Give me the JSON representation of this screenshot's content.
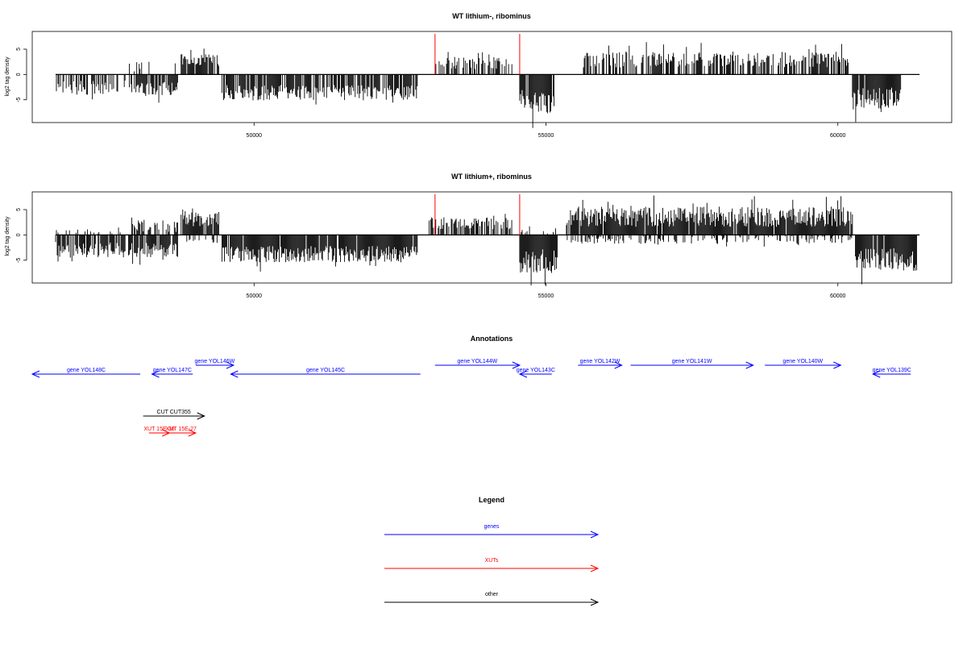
{
  "colors": {
    "genes": "#0000ff",
    "xuts": "#ff0000",
    "other": "#000000",
    "marker": "#ff0000"
  },
  "chart_data": [
    {
      "type": "bar",
      "title": "WT lithium-, ribominus",
      "ylabel": "log2 tag density",
      "xlim": [
        46200,
        61950
      ],
      "ylim": [
        -9.5,
        8.5
      ],
      "yticks": [
        -5,
        0,
        5
      ],
      "xticks": [
        50000,
        55000,
        60000
      ],
      "grid": false,
      "markers": [
        53100,
        54550
      ],
      "series": [
        {
          "xrange": [
            46600,
            47800
          ],
          "sign": -1,
          "mean": 2.6,
          "amp": 1.4,
          "density": 0.6
        },
        {
          "xrange": [
            47850,
            48700
          ],
          "sign": -1,
          "mean": 2.8,
          "amp": 1.3,
          "density": 0.8
        },
        {
          "xrange": [
            47850,
            48700
          ],
          "sign": 1,
          "mean": 1.6,
          "amp": 1.0,
          "density": 0.15
        },
        {
          "xrange": [
            48750,
            49400
          ],
          "sign": 1,
          "mean": 2.8,
          "amp": 1.2,
          "density": 0.85
        },
        {
          "xrange": [
            49450,
            52800
          ],
          "sign": -1,
          "mean": 3.6,
          "amp": 1.5,
          "density": 0.75
        },
        {
          "xrange": [
            53100,
            54450
          ],
          "sign": 1,
          "mean": 2.3,
          "amp": 1.2,
          "density": 0.55
        },
        {
          "xrange": [
            54550,
            55150
          ],
          "sign": -1,
          "mean": 5.5,
          "amp": 2.5,
          "density": 0.95
        },
        {
          "xrange": [
            55600,
            60200
          ],
          "sign": 1,
          "mean": 3.0,
          "amp": 1.6,
          "density": 0.6
        },
        {
          "xrange": [
            60250,
            61100
          ],
          "sign": -1,
          "mean": 4.8,
          "amp": 2.2,
          "density": 0.95
        }
      ]
    },
    {
      "type": "bar",
      "title": "WT lithium+, ribominus",
      "ylabel": "log2 tag density",
      "xlim": [
        46200,
        61950
      ],
      "ylim": [
        -9.5,
        8.5
      ],
      "yticks": [
        -5,
        0,
        5
      ],
      "xticks": [
        50000,
        55000,
        60000
      ],
      "grid": false,
      "markers": [
        53100,
        54550
      ],
      "series": [
        {
          "xrange": [
            46600,
            47800
          ],
          "sign": -1,
          "mean": 3.0,
          "amp": 1.6,
          "density": 0.8
        },
        {
          "xrange": [
            46600,
            47800
          ],
          "sign": 1,
          "mean": 0.7,
          "amp": 0.5,
          "density": 0.2
        },
        {
          "xrange": [
            47850,
            48700
          ],
          "sign": -1,
          "mean": 3.0,
          "amp": 1.4,
          "density": 0.85
        },
        {
          "xrange": [
            47850,
            48700
          ],
          "sign": 1,
          "mean": 1.8,
          "amp": 1.2,
          "density": 0.5
        },
        {
          "xrange": [
            48750,
            49400
          ],
          "sign": 1,
          "mean": 3.2,
          "amp": 1.6,
          "density": 0.9
        },
        {
          "xrange": [
            48750,
            49400
          ],
          "sign": -1,
          "mean": 1.0,
          "amp": 0.6,
          "density": 0.3
        },
        {
          "xrange": [
            49450,
            52800
          ],
          "sign": -1,
          "mean": 3.8,
          "amp": 1.6,
          "density": 0.95
        },
        {
          "xrange": [
            53000,
            54450
          ],
          "sign": 1,
          "mean": 2.3,
          "amp": 1.2,
          "density": 0.6
        },
        {
          "xrange": [
            54550,
            55200
          ],
          "sign": -1,
          "mean": 5.2,
          "amp": 2.4,
          "density": 0.95
        },
        {
          "xrange": [
            54550,
            55200
          ],
          "sign": 1,
          "mean": 1.0,
          "amp": 0.8,
          "density": 0.3
        },
        {
          "xrange": [
            55350,
            60250
          ],
          "sign": 1,
          "mean": 3.6,
          "amp": 2.0,
          "density": 0.95
        },
        {
          "xrange": [
            55350,
            60250
          ],
          "sign": -1,
          "mean": 1.0,
          "amp": 0.8,
          "density": 0.35
        },
        {
          "xrange": [
            60300,
            61350
          ],
          "sign": -1,
          "mean": 4.8,
          "amp": 2.3,
          "density": 0.95
        }
      ]
    }
  ],
  "annotations": {
    "title": "Annotations",
    "features": [
      {
        "label": "gene YOL148C",
        "start": 46200,
        "end": 48050,
        "strand": "-",
        "kind": "genes",
        "row": "low"
      },
      {
        "label": "gene YOL147C",
        "start": 48250,
        "end": 48950,
        "strand": "-",
        "kind": "genes",
        "row": "low"
      },
      {
        "label": "gene YOL146W",
        "start": 49000,
        "end": 49650,
        "strand": "+",
        "kind": "genes",
        "row": "high"
      },
      {
        "label": "gene YOL145C",
        "start": 49600,
        "end": 52850,
        "strand": "-",
        "kind": "genes",
        "row": "low"
      },
      {
        "label": "gene YOL144W",
        "start": 53100,
        "end": 54550,
        "strand": "+",
        "kind": "genes",
        "row": "high"
      },
      {
        "label": "gene YOL143C",
        "start": 54550,
        "end": 55100,
        "strand": "-",
        "kind": "genes",
        "row": "low"
      },
      {
        "label": "gene YOL142W",
        "start": 55550,
        "end": 56300,
        "strand": "+",
        "kind": "genes",
        "row": "high"
      },
      {
        "label": "gene YOL141W",
        "start": 56450,
        "end": 58550,
        "strand": "+",
        "kind": "genes",
        "row": "high"
      },
      {
        "label": "gene YOL140W",
        "start": 58750,
        "end": 60050,
        "strand": "+",
        "kind": "genes",
        "row": "high"
      },
      {
        "label": "gene YOL139C",
        "start": 60600,
        "end": 61250,
        "strand": "-",
        "kind": "genes",
        "row": "low"
      },
      {
        "label": "CUT CUT355",
        "start": 48100,
        "end": 49150,
        "strand": "+",
        "kind": "other",
        "row": "cut"
      },
      {
        "label": "XUT 15E-36",
        "start": 48200,
        "end": 48550,
        "strand": "+",
        "kind": "xuts",
        "row": "xut"
      },
      {
        "label": "XUT 15E-27",
        "start": 48500,
        "end": 49000,
        "strand": "+",
        "kind": "xuts",
        "row": "xut"
      }
    ]
  },
  "legend": {
    "title": "Legend",
    "items": [
      {
        "label": "genes",
        "kind": "genes"
      },
      {
        "label": "XUTs",
        "kind": "xuts"
      },
      {
        "label": "other",
        "kind": "other"
      }
    ]
  }
}
